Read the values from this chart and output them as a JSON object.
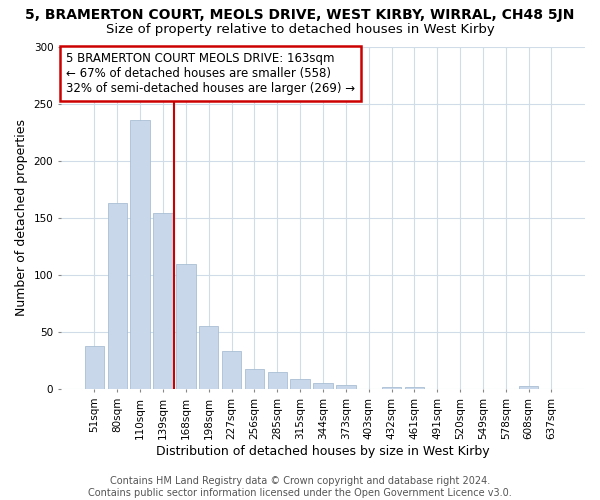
{
  "title": "5, BRAMERTON COURT, MEOLS DRIVE, WEST KIRBY, WIRRAL, CH48 5JN",
  "subtitle": "Size of property relative to detached houses in West Kirby",
  "xlabel": "Distribution of detached houses by size in West Kirby",
  "ylabel": "Number of detached properties",
  "bar_labels": [
    "51sqm",
    "80sqm",
    "110sqm",
    "139sqm",
    "168sqm",
    "198sqm",
    "227sqm",
    "256sqm",
    "285sqm",
    "315sqm",
    "344sqm",
    "373sqm",
    "403sqm",
    "432sqm",
    "461sqm",
    "491sqm",
    "520sqm",
    "549sqm",
    "578sqm",
    "608sqm",
    "637sqm"
  ],
  "bar_values": [
    38,
    163,
    236,
    154,
    110,
    55,
    33,
    18,
    15,
    9,
    5,
    4,
    0,
    2,
    2,
    0,
    0,
    0,
    0,
    3,
    0
  ],
  "bar_color": "#c8d8ea",
  "bar_edge_color": "#aabfd4",
  "red_line_x": 4.0,
  "annotation_text": "5 BRAMERTON COURT MEOLS DRIVE: 163sqm\n← 67% of detached houses are smaller (558)\n32% of semi-detached houses are larger (269) →",
  "annotation_box_color": "white",
  "annotation_box_edge_color": "#cc0000",
  "ylim": [
    0,
    300
  ],
  "yticks": [
    0,
    50,
    100,
    150,
    200,
    250,
    300
  ],
  "footer": "Contains HM Land Registry data © Crown copyright and database right 2024.\nContains public sector information licensed under the Open Government Licence v3.0.",
  "background_color": "#ffffff",
  "plot_bg_color": "#ffffff",
  "grid_color": "#d0dce8",
  "title_fontsize": 10,
  "subtitle_fontsize": 9.5,
  "axis_label_fontsize": 9,
  "tick_fontsize": 7.5,
  "footer_fontsize": 7,
  "annotation_fontsize": 8.5
}
